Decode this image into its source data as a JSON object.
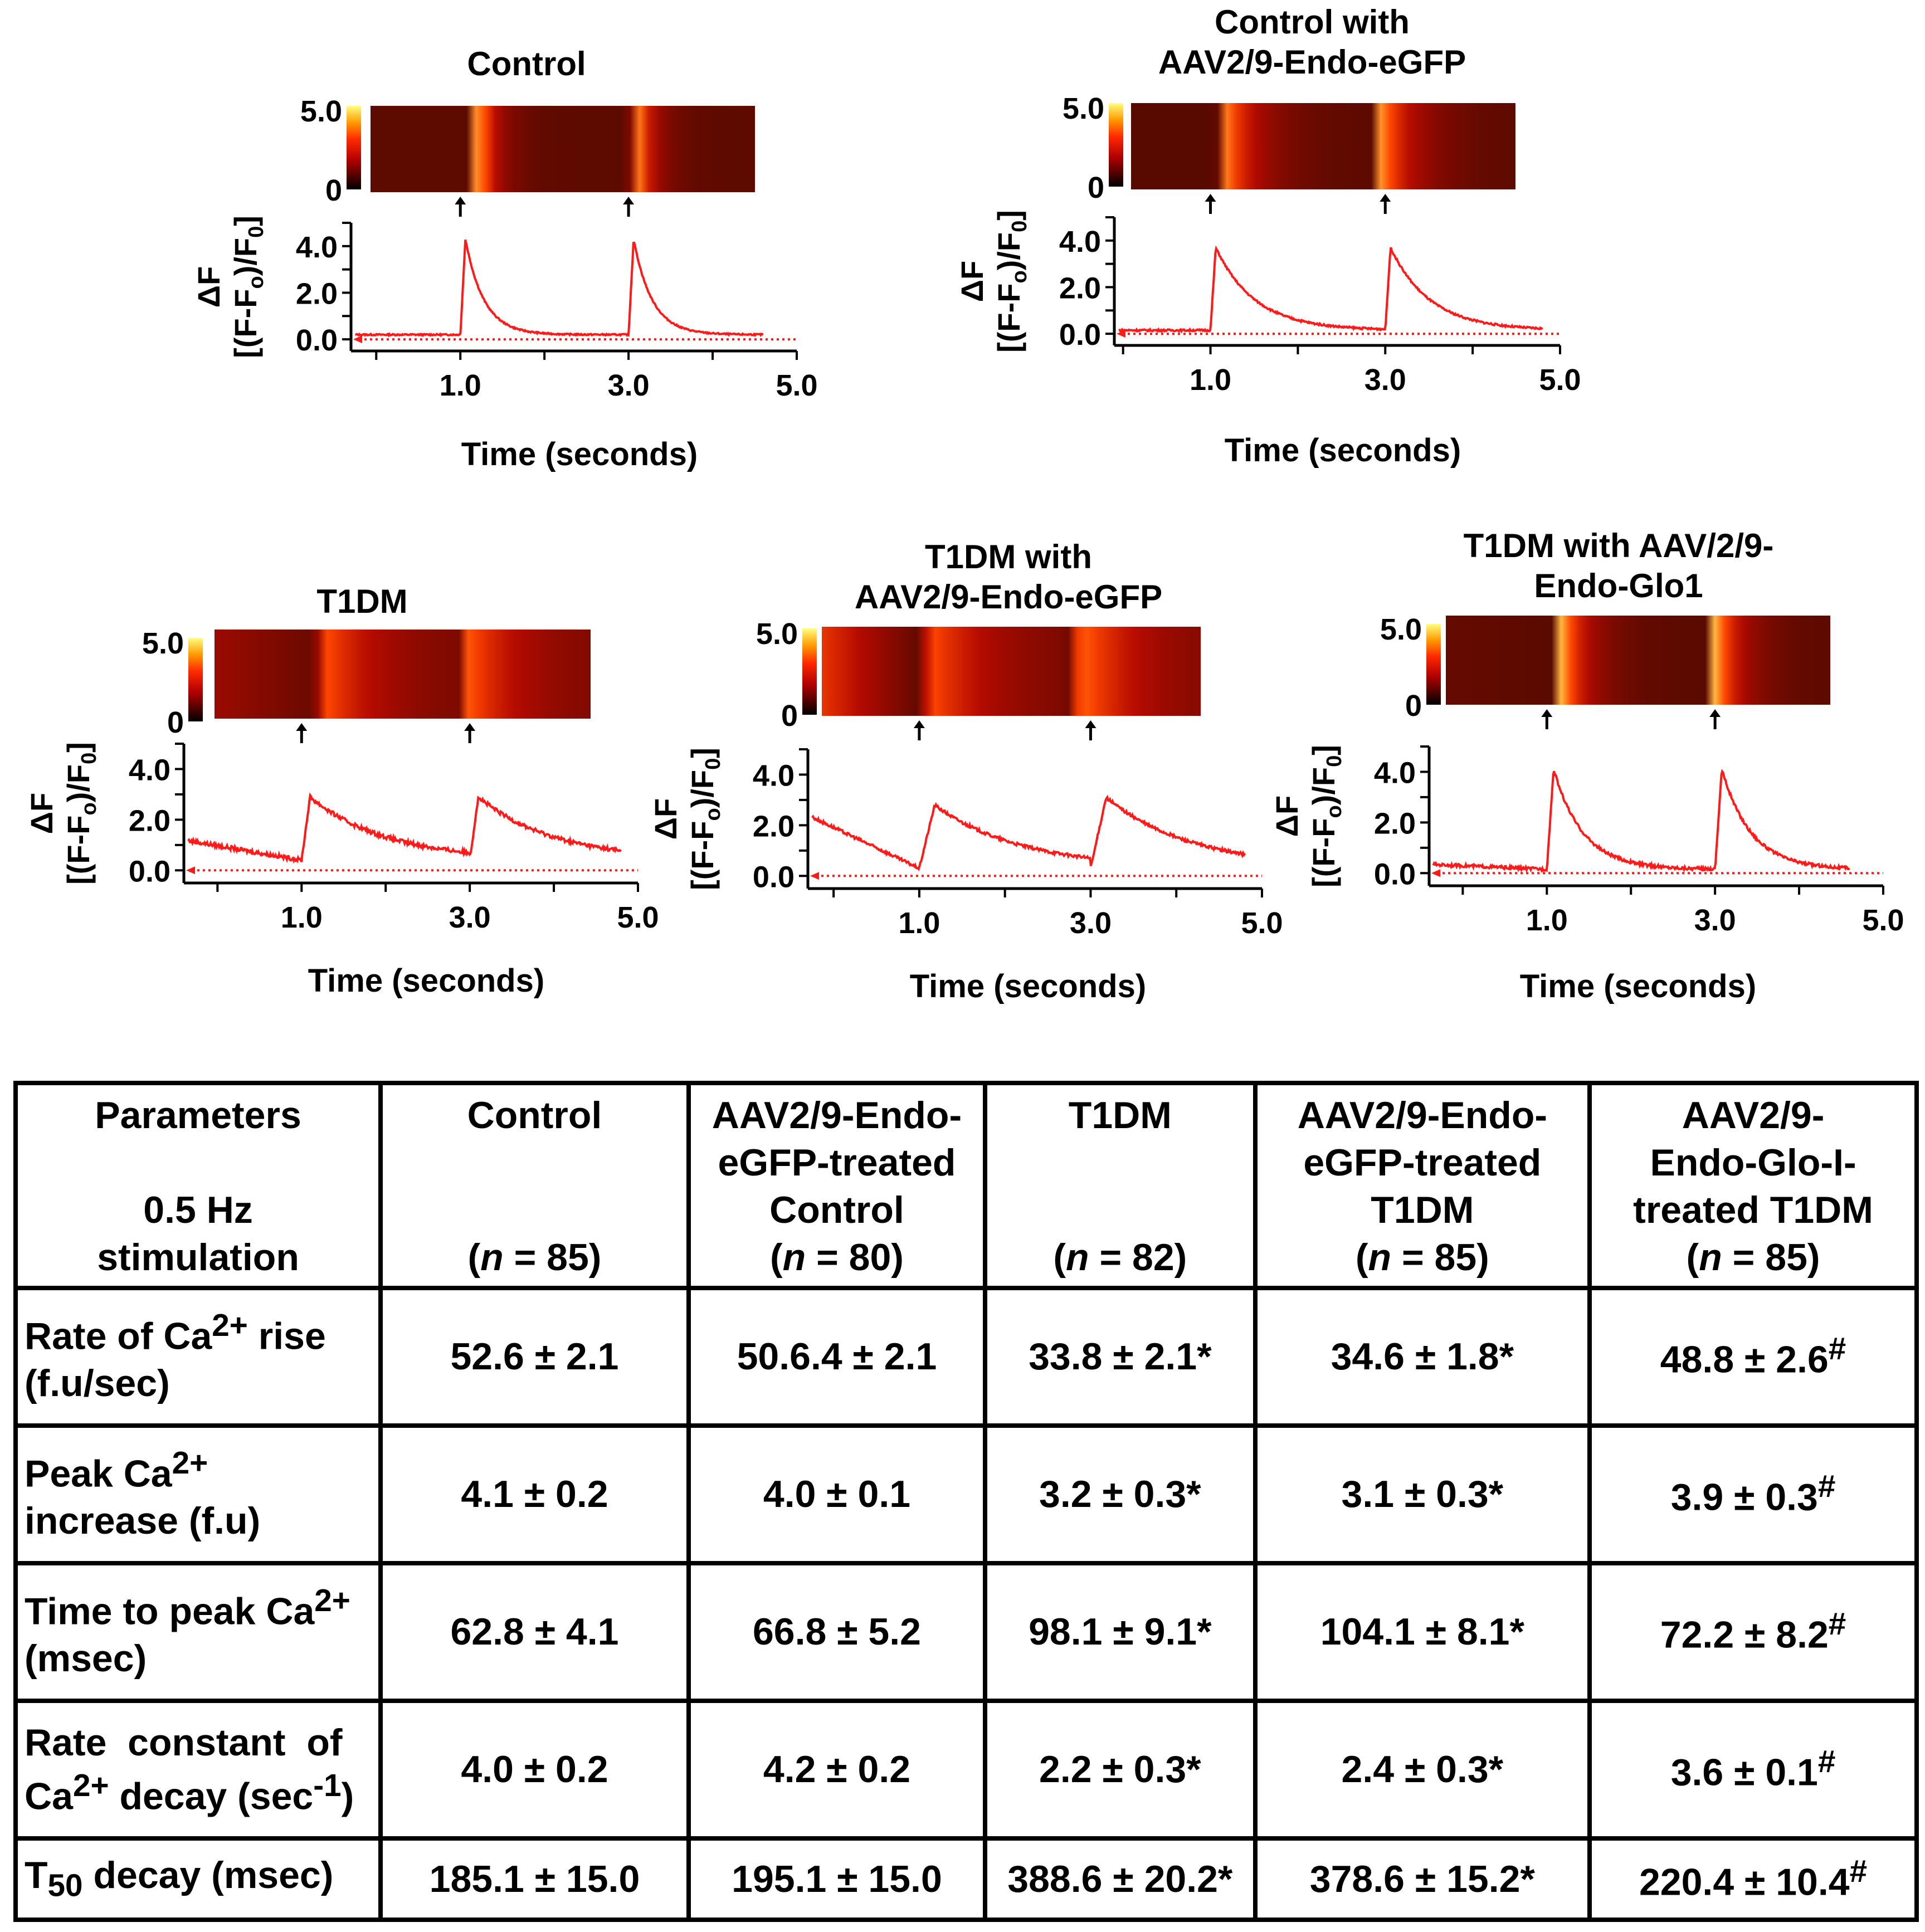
{
  "chart_data": [
    {
      "type": "line",
      "title": "Control",
      "xlabel": "Time (seconds)",
      "ylabel_top": "ΔF",
      "ylabel_bottom": "[(F-F",
      "ylabel_sub_o": "o",
      "ylabel_mid": ")/F",
      "ylabel_sub_0": "0",
      "ylabel_end": "]",
      "xticks": [
        "1.0",
        "3.0",
        "5.0"
      ],
      "yticks": [
        "0.0",
        "2.0",
        "4.0"
      ],
      "colorbar_ticks": [
        "5.0",
        "0"
      ],
      "xlim": [
        -0.3,
        5.0
      ],
      "ylim": [
        -0.5,
        5.0
      ],
      "stimuli": [
        1.0,
        3.0
      ],
      "series": [
        {
          "baseline": 0.2,
          "peak": 4.3,
          "rise_ms": 60,
          "tau": 0.22,
          "end": 4.6,
          "noise": 0.03
        }
      ]
    },
    {
      "type": "line",
      "title": "Control with AAV2/9-Endo-eGFP",
      "title_lines": [
        "Control with",
        "AAV2/9-Endo-eGFP"
      ],
      "xlabel": "Time (seconds)",
      "ylabel_top": "ΔF",
      "ylabel_bottom": "[(F-F",
      "ylabel_sub_o": "o",
      "ylabel_mid": ")/F",
      "ylabel_sub_0": "0",
      "ylabel_end": "]",
      "xticks": [
        "1.0",
        "3.0",
        "5.0"
      ],
      "yticks": [
        "0.0",
        "2.0",
        "4.0"
      ],
      "colorbar_ticks": [
        "5.0",
        "0"
      ],
      "xlim": [
        -0.1,
        5.0
      ],
      "ylim": [
        -0.5,
        5.0
      ],
      "stimuli": [
        1.0,
        3.0
      ],
      "series": [
        {
          "baseline": 0.15,
          "peak": 3.7,
          "rise_ms": 60,
          "tau": 0.45,
          "end": 4.8,
          "noise": 0.04
        }
      ]
    },
    {
      "type": "line",
      "title": "T1DM",
      "xlabel": "Time (seconds)",
      "ylabel_top": "ΔF",
      "ylabel_bottom": "[(F-F",
      "ylabel_sub_o": "o",
      "ylabel_mid": ")/F",
      "ylabel_sub_0": "0",
      "ylabel_end": "]",
      "xticks": [
        "1.0",
        "3.0",
        "5.0"
      ],
      "yticks": [
        "0.0",
        "2.0",
        "4.0"
      ],
      "colorbar_ticks": [
        "5.0",
        "0"
      ],
      "xlim": [
        -0.4,
        5.0
      ],
      "ylim": [
        -0.5,
        5.0
      ],
      "stimuli": [
        1.0,
        3.0
      ],
      "series": [
        {
          "baseline": 0.4,
          "start": 1.2,
          "peak": 2.9,
          "rise_ms": 100,
          "tau": 0.9,
          "end": 4.8,
          "noise": 0.08
        }
      ]
    },
    {
      "type": "line",
      "title": "T1DM with AAV2/9-Endo-eGFP",
      "title_lines": [
        "T1DM with",
        "AAV2/9-Endo-eGFP"
      ],
      "xlabel": "Time (seconds)",
      "ylabel_top": "ΔF",
      "ylabel_bottom": "[(F-F",
      "ylabel_sub_o": "o",
      "ylabel_mid": ")/F",
      "ylabel_sub_0": "0",
      "ylabel_end": "]",
      "xticks": [
        "1.0",
        "3.0",
        "5.0"
      ],
      "yticks": [
        "0.0",
        "2.0",
        "4.0"
      ],
      "colorbar_ticks": [
        "5.0",
        "0"
      ],
      "xlim": [
        -0.3,
        5.0
      ],
      "ylim": [
        -0.5,
        5.0
      ],
      "stimuli": [
        1.0,
        3.0
      ],
      "series": [
        {
          "baseline": 0.3,
          "start": 2.4,
          "peak": 2.8,
          "peak2": 3.1,
          "rise_ms": 180,
          "tau": 1.0,
          "end": 4.8,
          "noise": 0.06
        }
      ]
    },
    {
      "type": "line",
      "title": "T1DM with AAV/2/9-Endo-Glo1",
      "title_lines": [
        "T1DM with AAV/2/9-",
        "Endo-Glo1"
      ],
      "xlabel": "Time (seconds)",
      "ylabel_top": "ΔF",
      "ylabel_bottom": "[(F-F",
      "ylabel_sub_o": "o",
      "ylabel_mid": ")/F",
      "ylabel_sub_0": "0",
      "ylabel_end": "]",
      "xticks": [
        "1.0",
        "3.0",
        "5.0"
      ],
      "yticks": [
        "0.0",
        "2.0",
        "4.0"
      ],
      "colorbar_ticks": [
        "5.0",
        "0"
      ],
      "xlim": [
        -0.4,
        5.0
      ],
      "ylim": [
        -0.5,
        5.0
      ],
      "stimuli": [
        1.0,
        3.0
      ],
      "series": [
        {
          "baseline": 0.15,
          "start": 0.35,
          "peak": 4.1,
          "rise_ms": 80,
          "tau": 0.35,
          "end": 4.6,
          "noise": 0.06
        }
      ]
    }
  ],
  "table": {
    "header": {
      "params_line1": "Parameters",
      "params_line2": "0.5 Hz",
      "params_line3": "stimulation",
      "columns": [
        {
          "lines": [
            "Control"
          ],
          "n": "(n = 85)"
        },
        {
          "lines": [
            "AAV2/9-Endo-",
            "eGFP-treated",
            "Control"
          ],
          "n": "(n = 80)"
        },
        {
          "lines": [
            "T1DM"
          ],
          "n": "(n = 82)"
        },
        {
          "lines": [
            "AAV2/9-Endo-",
            "eGFP-treated",
            "T1DM"
          ],
          "n": "(n = 85)"
        },
        {
          "lines": [
            "AAV2/9-",
            "Endo-Glo-I-",
            "treated T1DM"
          ],
          "n": "(n = 85)"
        }
      ]
    },
    "rows": [
      {
        "label_a": "Rate of Ca",
        "label_sup": "2+",
        "label_b": " rise",
        "label_c": "(f.u/sec)",
        "values": [
          {
            "v": "52.6 ± 2.1",
            "mark": ""
          },
          {
            "v": "50.6.4 ± 2.1",
            "mark": ""
          },
          {
            "v": "33.8 ± 2.1*",
            "mark": ""
          },
          {
            "v": "34.6 ± 1.8*",
            "mark": ""
          },
          {
            "v": "48.8 ± 2.6",
            "mark": "#"
          }
        ]
      },
      {
        "label_a": "Peak Ca",
        "label_sup": "2+",
        "label_b": "",
        "label_c": "increase (f.u)",
        "values": [
          {
            "v": "4.1 ± 0.2",
            "mark": ""
          },
          {
            "v": "4.0 ± 0.1",
            "mark": ""
          },
          {
            "v": "3.2 ± 0.3*",
            "mark": ""
          },
          {
            "v": "3.1 ± 0.3*",
            "mark": ""
          },
          {
            "v": "3.9 ± 0.3",
            "mark": "#"
          }
        ]
      },
      {
        "label_a": "Time to peak Ca",
        "label_sup": "2+",
        "label_b": "",
        "label_c": "(msec)",
        "values": [
          {
            "v": "62.8 ± 4.1",
            "mark": ""
          },
          {
            "v": "66.8 ± 5.2",
            "mark": ""
          },
          {
            "v": "98.1 ± 9.1*",
            "mark": ""
          },
          {
            "v": "104.1 ± 8.1*",
            "mark": ""
          },
          {
            "v": "72.2 ± 8.2",
            "mark": "#"
          }
        ]
      },
      {
        "label_a": "Rate  constant  of",
        "label_sup": "",
        "label_b": "",
        "label_c": "Ca",
        "label_c_sup": "2+",
        "label_c_b": " decay (sec",
        "label_c_sup2": "-1",
        "label_c_end": ")",
        "values": [
          {
            "v": "4.0 ± 0.2",
            "mark": ""
          },
          {
            "v": "4.2 ± 0.2",
            "mark": ""
          },
          {
            "v": "2.2 ± 0.3*",
            "mark": ""
          },
          {
            "v": "2.4 ± 0.3*",
            "mark": ""
          },
          {
            "v": "3.6 ± 0.1",
            "mark": "#"
          }
        ]
      },
      {
        "label_a": "T",
        "label_sub": "50",
        "label_b": " decay (msec)",
        "values": [
          {
            "v": "185.1 ± 15.0",
            "mark": ""
          },
          {
            "v": "195.1 ± 15.0",
            "mark": ""
          },
          {
            "v": "388.6 ± 20.2*",
            "mark": ""
          },
          {
            "v": "378.6 ± 15.2*",
            "mark": ""
          },
          {
            "v": "220.4 ± 10.4",
            "mark": "#"
          }
        ]
      }
    ]
  },
  "colors": {
    "trace": "#ff1a1a",
    "baseline_arrow": "#ff1a1a",
    "axis": "#000000"
  }
}
